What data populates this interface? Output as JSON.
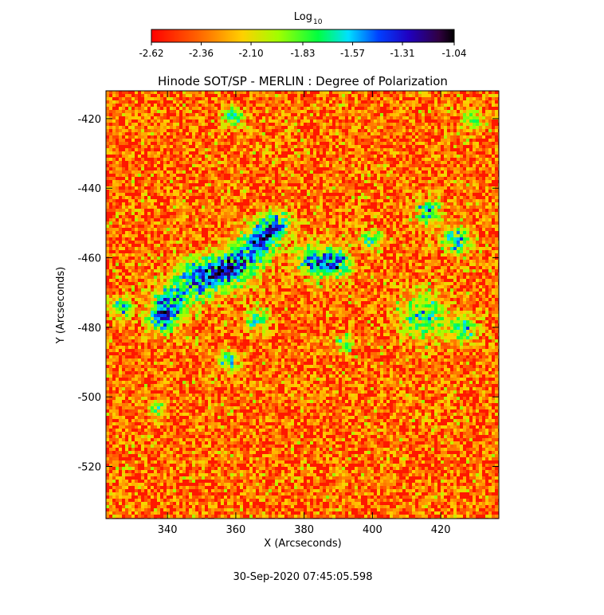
{
  "chart_data": {
    "type": "image",
    "title": "Hinode SOT/SP - MERLIN : Degree of Polarization",
    "xlabel": "X (Arcseconds)",
    "ylabel": "Y (Arcseconds)",
    "xlim": [
      322,
      437
    ],
    "ylim": [
      -535,
      -412
    ],
    "xticks": [
      340,
      360,
      380,
      400,
      420
    ],
    "yticks": [
      -420,
      -440,
      -460,
      -480,
      -500,
      -520
    ],
    "colorbar": {
      "label": "Log",
      "label_subscript": "10",
      "lim": [
        -2.62,
        -1.04
      ],
      "ticks": [
        -2.62,
        -2.36,
        {
          "value": -2.1,
          "label": "-2.10"
        },
        -1.83,
        -1.57,
        -1.31,
        -1.04
      ]
    },
    "timestamp": "30-Sep-2020 07:45:05.598"
  }
}
